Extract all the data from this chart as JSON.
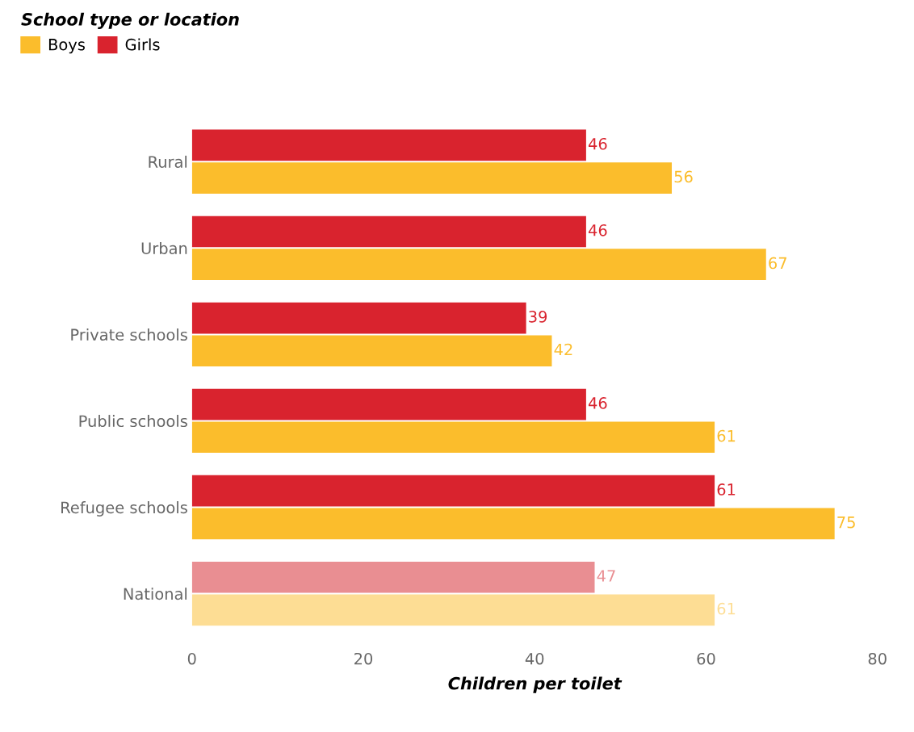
{
  "chart_data": {
    "type": "bar",
    "orientation": "horizontal",
    "legend_title": "School type or location",
    "xlabel": "Children per toilet",
    "categories": [
      "Rural",
      "Urban",
      "Private schools",
      "Public schools",
      "Refugee schools",
      "National"
    ],
    "series": [
      {
        "name": "Boys",
        "color": "#fbbd2c",
        "colors": [
          "#fbbd2c",
          "#fbbd2c",
          "#fbbd2c",
          "#fbbd2c",
          "#fbbd2c",
          "#fddd94"
        ],
        "values": [
          56,
          67,
          42,
          61,
          75,
          61
        ]
      },
      {
        "name": "Girls",
        "color": "#d9232e",
        "colors": [
          "#d9232e",
          "#d9232e",
          "#d9232e",
          "#d9232e",
          "#d9232e",
          "#e98e92"
        ],
        "values": [
          46,
          46,
          39,
          46,
          61,
          47
        ]
      }
    ],
    "xlim": [
      0,
      80
    ],
    "xticks": [
      0,
      20,
      40,
      60,
      80
    ],
    "data_labels": true,
    "legend": "top left",
    "grid": false
  }
}
